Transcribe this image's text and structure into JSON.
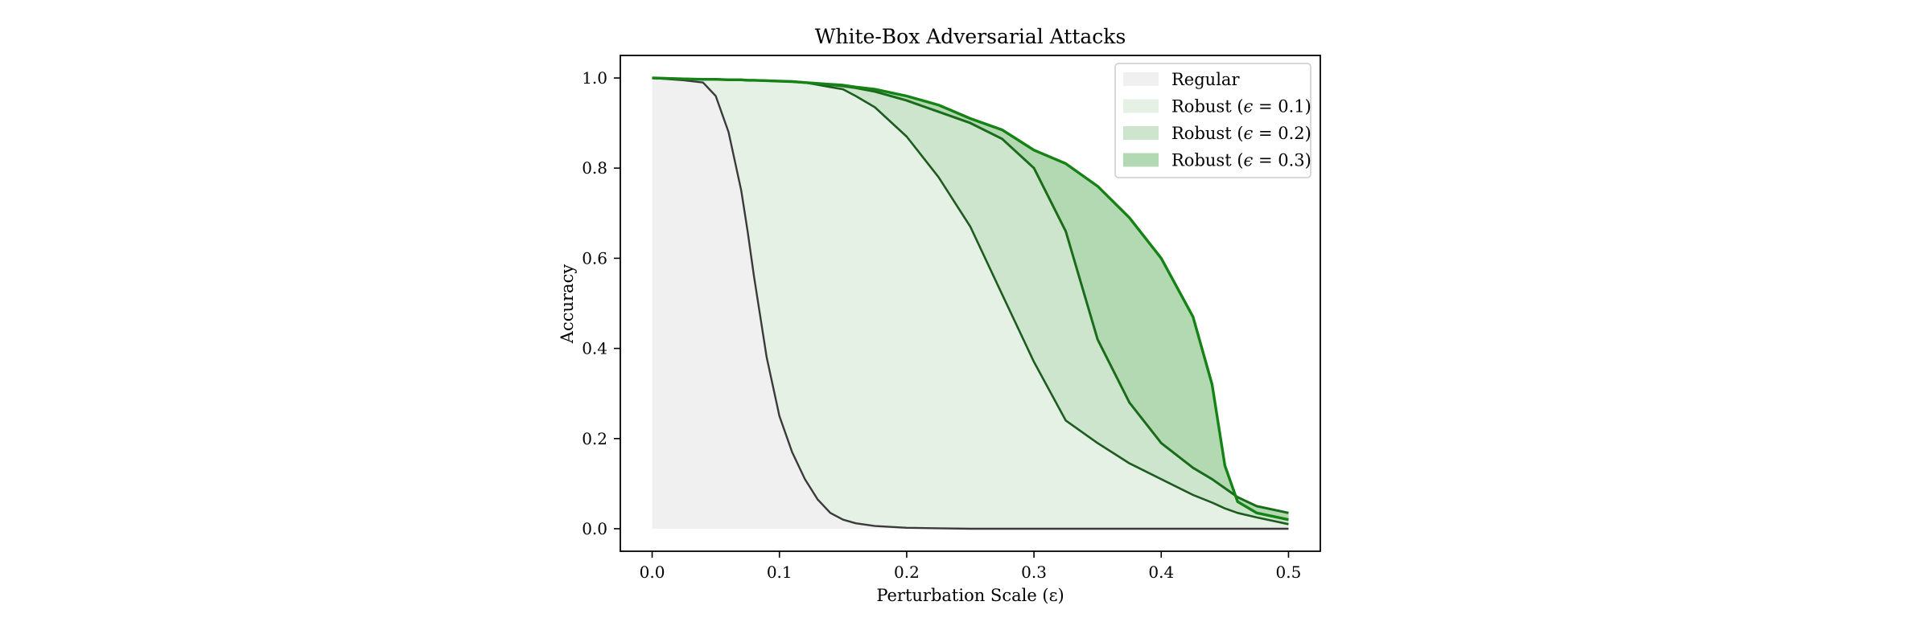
{
  "chart_data": {
    "type": "area",
    "title": "White-Box Adversarial Attacks",
    "xlabel": "Perturbation Scale (ε)",
    "ylabel": "Accuracy",
    "xlim": [
      -0.025,
      0.525
    ],
    "ylim": [
      -0.05,
      1.05
    ],
    "xticks": [
      0.0,
      0.1,
      0.2,
      0.3,
      0.4,
      0.5
    ],
    "xtick_labels": [
      "0.0",
      "0.1",
      "0.2",
      "0.3",
      "0.4",
      "0.5"
    ],
    "yticks": [
      0.0,
      0.2,
      0.4,
      0.6,
      0.8,
      1.0
    ],
    "ytick_labels": [
      "0.0",
      "0.2",
      "0.4",
      "0.6",
      "0.8",
      "1.0"
    ],
    "grid": false,
    "legend_position": "top-right",
    "x": [
      0.0,
      0.025,
      0.04,
      0.05,
      0.06,
      0.07,
      0.075,
      0.08,
      0.09,
      0.1,
      0.11,
      0.12,
      0.13,
      0.14,
      0.15,
      0.16,
      0.175,
      0.2,
      0.225,
      0.25,
      0.275,
      0.3,
      0.325,
      0.35,
      0.375,
      0.4,
      0.425,
      0.44,
      0.45,
      0.46,
      0.475,
      0.5
    ],
    "series": [
      {
        "name": "Regular",
        "color": "#f0f0f0",
        "line_color": "#3a3a3a",
        "values": [
          1.0,
          0.995,
          0.99,
          0.96,
          0.88,
          0.75,
          0.66,
          0.56,
          0.38,
          0.25,
          0.17,
          0.11,
          0.065,
          0.035,
          0.02,
          0.012,
          0.006,
          0.002,
          0.001,
          0.0,
          0.0,
          0.0,
          0.0,
          0.0,
          0.0,
          0.0,
          0.0,
          0.0,
          0.0,
          0.0,
          0.0,
          0.0
        ]
      },
      {
        "name": "Robust ($\\epsilon = 0.1$)",
        "legend_parts": [
          "Robust (",
          "ϵ",
          " = 0.1)"
        ],
        "color": "#e5f1e5",
        "line_color": "#1e5b1e",
        "values": [
          1.0,
          0.998,
          0.997,
          0.997,
          0.996,
          0.996,
          0.995,
          0.995,
          0.994,
          0.993,
          0.992,
          0.99,
          0.985,
          0.98,
          0.975,
          0.96,
          0.935,
          0.87,
          0.78,
          0.67,
          0.52,
          0.37,
          0.24,
          0.19,
          0.145,
          0.11,
          0.075,
          0.058,
          0.045,
          0.035,
          0.025,
          0.01
        ]
      },
      {
        "name": "Robust ($\\epsilon = 0.2$)",
        "legend_parts": [
          "Robust (",
          "ϵ",
          " = 0.2)"
        ],
        "color": "#cce5cc",
        "line_color": "#1a6b1a",
        "values": [
          1.0,
          0.998,
          0.997,
          0.997,
          0.996,
          0.996,
          0.995,
          0.995,
          0.994,
          0.993,
          0.992,
          0.99,
          0.987,
          0.985,
          0.982,
          0.978,
          0.97,
          0.95,
          0.925,
          0.9,
          0.865,
          0.8,
          0.66,
          0.42,
          0.28,
          0.19,
          0.135,
          0.11,
          0.09,
          0.07,
          0.05,
          0.035
        ]
      },
      {
        "name": "Robust ($\\epsilon = 0.3$)",
        "legend_parts": [
          "Robust (",
          "ϵ",
          " = 0.3)"
        ],
        "color": "#b3d9b3",
        "line_color": "#148214",
        "values": [
          1.0,
          0.998,
          0.997,
          0.997,
          0.996,
          0.996,
          0.995,
          0.995,
          0.994,
          0.993,
          0.992,
          0.99,
          0.988,
          0.986,
          0.984,
          0.98,
          0.975,
          0.96,
          0.94,
          0.91,
          0.885,
          0.84,
          0.81,
          0.76,
          0.69,
          0.6,
          0.47,
          0.32,
          0.14,
          0.06,
          0.035,
          0.02
        ]
      }
    ]
  }
}
